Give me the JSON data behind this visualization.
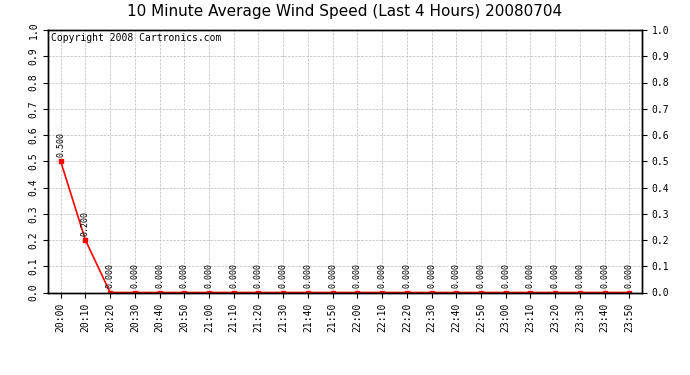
{
  "title": "10 Minute Average Wind Speed (Last 4 Hours) 20080704",
  "copyright_text": "Copyright 2008 Cartronics.com",
  "x_labels": [
    "20:00",
    "20:10",
    "20:20",
    "20:30",
    "20:40",
    "20:50",
    "21:00",
    "21:10",
    "21:20",
    "21:30",
    "21:40",
    "21:50",
    "22:00",
    "22:10",
    "22:20",
    "22:30",
    "22:40",
    "22:50",
    "23:00",
    "23:10",
    "23:20",
    "23:30",
    "23:40",
    "23:50"
  ],
  "y_values": [
    0.5,
    0.2,
    0.0,
    0.0,
    0.0,
    0.0,
    0.0,
    0.0,
    0.0,
    0.0,
    0.0,
    0.0,
    0.0,
    0.0,
    0.0,
    0.0,
    0.0,
    0.0,
    0.0,
    0.0,
    0.0,
    0.0,
    0.0,
    0.0
  ],
  "line_color": "#ff0000",
  "marker_color": "#ff0000",
  "ylim": [
    0.0,
    1.0
  ],
  "y_ticks_left": [
    0.0,
    0.1,
    0.2,
    0.3,
    0.4,
    0.5,
    0.6,
    0.7,
    0.8,
    0.9,
    1.0
  ],
  "y_ticks_right": [
    0.0,
    0.1,
    0.2,
    0.3,
    0.4,
    0.5,
    0.6,
    0.7,
    0.8,
    0.9,
    1.0
  ],
  "background_color": "#ffffff",
  "plot_bg_color": "#ffffff",
  "grid_color": "#bbbbbb",
  "title_fontsize": 11,
  "annotation_fontsize": 6,
  "tick_fontsize": 7,
  "copyright_fontsize": 7,
  "left_ytick_labels": [
    "0.0",
    "0.1",
    "0.2",
    "0.3",
    "0.4",
    "0.5",
    "0.6",
    "0.7",
    "0.8",
    "0.9",
    "1.0"
  ],
  "right_ytick_labels": [
    "0.0",
    "0.1",
    "0.2",
    "0.3",
    "0.4",
    "0.5",
    "0.6",
    "0.7",
    "0.8",
    "0.9",
    "1.0"
  ]
}
